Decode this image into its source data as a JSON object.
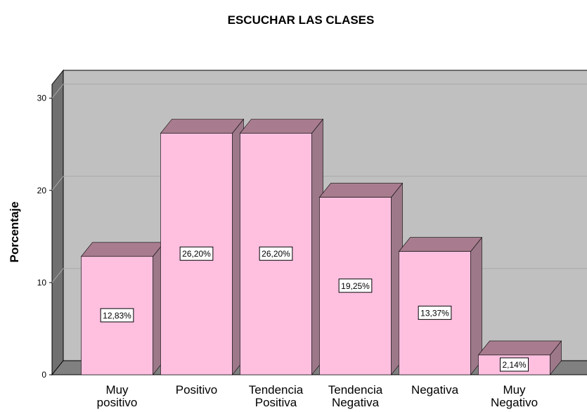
{
  "chart_data": {
    "type": "bar3d",
    "title": "ESCUCHAR LAS CLASES",
    "y_label": "Porcentaje",
    "categories": [
      "Muy positivo",
      "Positivo",
      "Tendencia Positiva",
      "Tendencia Negativa",
      "Negativa",
      "Muy Negativo"
    ],
    "values": [
      12.83,
      26.2,
      26.2,
      19.25,
      13.37,
      2.14
    ],
    "value_labels": [
      "12,83%",
      "26,20%",
      "26,20%",
      "19,25%",
      "13,37%",
      "2,14%"
    ],
    "color": "#ffc0e0",
    "ylim": [
      0,
      31.5
    ],
    "yticks": [
      0,
      10,
      20,
      30
    ],
    "grid": true
  }
}
